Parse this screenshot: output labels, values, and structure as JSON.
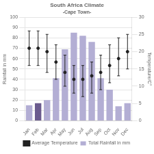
{
  "chart_data": {
    "type": "bar",
    "title": "South Africa Climate",
    "subtitle": "-Cape Town-",
    "categories": [
      "Jan",
      "Feb",
      "Mar",
      "Apr",
      "May",
      "Jun",
      "Jul",
      "Aug",
      "Sep",
      "Oct",
      "Nov",
      "Dec"
    ],
    "series": [
      {
        "name": "Total Rainfall in mm",
        "type": "bar",
        "color": "#b3aed4",
        "colors": [
          "#b3aed4",
          "#6b5b8e",
          "#b3aed4",
          "#b3aed4",
          "#b3aed4",
          "#b3aed4",
          "#b3aed4",
          "#b3aed4",
          "#b3aed4",
          "#b3aed4",
          "#b3aed4",
          "#b3aed4"
        ],
        "values": [
          15,
          17,
          20,
          41,
          69,
          85,
          82,
          76,
          41,
          30,
          14,
          17
        ]
      },
      {
        "name": "Average Temperature",
        "type": "scatter",
        "axis": "y2",
        "color": "#222222",
        "marker": "circle",
        "values": [
          21,
          21,
          20,
          17,
          14,
          12,
          12,
          13,
          14,
          16,
          18,
          20
        ],
        "lows": [
          16,
          16,
          14,
          12,
          10,
          8,
          7,
          8,
          9,
          11,
          13,
          15
        ],
        "highs": [
          26,
          26,
          25,
          22,
          19,
          16,
          16,
          17,
          19,
          22,
          24,
          25
        ]
      }
    ],
    "ylabel": "Rainfall in mm",
    "y2label": "Temperature/C°",
    "ylim": [
      0,
      100
    ],
    "yticks": [
      0,
      10,
      20,
      30,
      40,
      50,
      60,
      70,
      80,
      90,
      100
    ],
    "y2lim": [
      0,
      30
    ],
    "y2ticks": [
      0,
      5,
      10,
      15,
      20,
      25,
      30
    ],
    "grid": true,
    "legend": "bottom"
  }
}
